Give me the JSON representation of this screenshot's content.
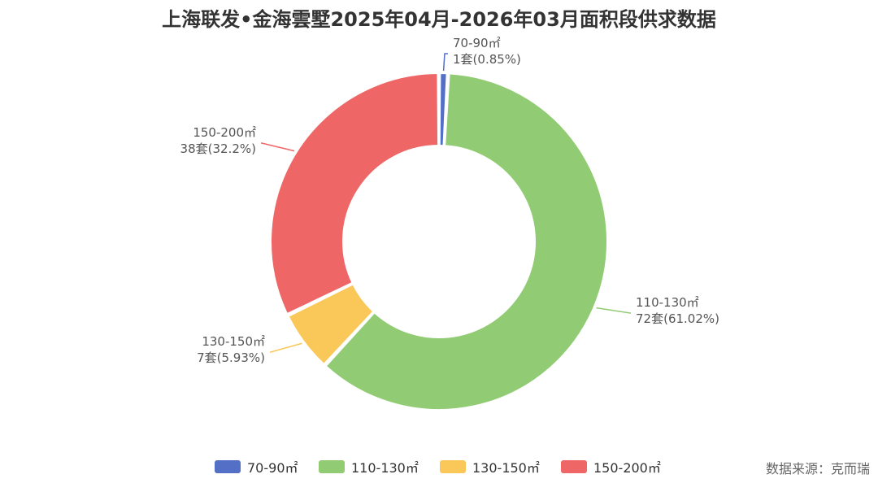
{
  "chart_data": {
    "type": "pie",
    "title": "上海联发•金海雲墅2025年04月-2026年03月面积段供求数据",
    "slices": [
      {
        "name": "70-90㎡",
        "count_label": "1套(0.85%)",
        "value": 1,
        "percent": 0.85,
        "color": "#5470c6"
      },
      {
        "name": "110-130㎡",
        "count_label": "72套(61.02%)",
        "value": 72,
        "percent": 61.02,
        "color": "#91cc75"
      },
      {
        "name": "130-150㎡",
        "count_label": "7套(5.93%)",
        "value": 7,
        "percent": 5.93,
        "color": "#fac858"
      },
      {
        "name": "150-200㎡",
        "count_label": "38套(32.2%)",
        "value": 38,
        "percent": 32.2,
        "color": "#ee6666"
      }
    ],
    "legend_position": "bottom"
  },
  "source": "数据来源：克而瑞"
}
